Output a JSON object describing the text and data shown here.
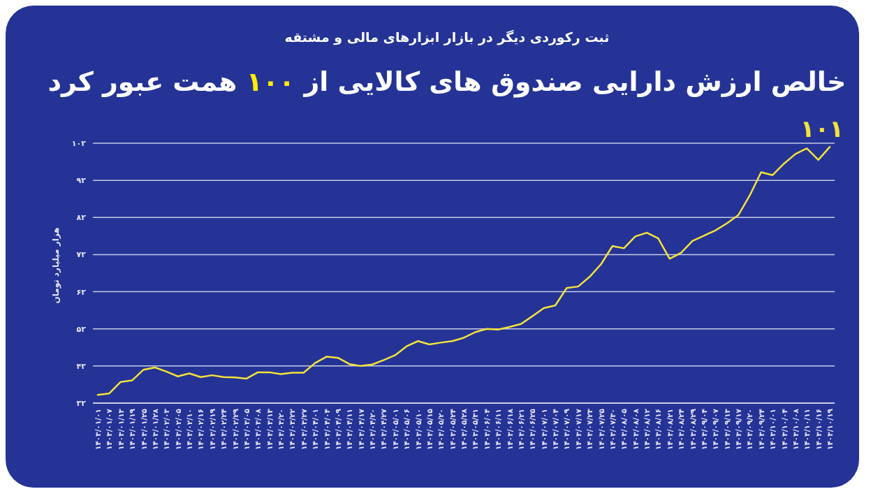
{
  "chart_data": {
    "type": "line",
    "title": "خالص ارزش دارایی صندوق های کالایی از ۱۰۰ همت عبور کرد",
    "subtitle": "ثبت رکوردی دیگر در بازار ابزارهای مالی و مشتقه",
    "ylabel": "هزار میلیارد تومان",
    "categories": [
      "۱۴۰۳/۰۱/۰۱",
      "۱۴۰۳/۰۱/۰۷",
      "۱۴۰۳/۰۱/۱۳",
      "۱۴۰۳/۰۱/۱۹",
      "۱۴۰۳/۰۱/۲۵",
      "۱۴۰۳/۰۱/۲۸",
      "۱۴۰۳/۰۲/۰۳",
      "۱۴۰۳/۰۲/۰۵",
      "۱۴۰۳/۰۲/۱۰",
      "۱۴۰۳/۰۲/۱۶",
      "۱۴۰۳/۰۲/۱۹",
      "۱۴۰۳/۰۲/۲۴",
      "۱۴۰۳/۰۲/۲۹",
      "۱۴۰۳/۰۳/۰۵",
      "۱۴۰۳/۰۳/۰۸",
      "۱۴۰۳/۰۳/۱۳",
      "۱۴۰۳/۰۳/۲۰",
      "۱۴۰۳/۰۳/۲۲",
      "۱۴۰۳/۰۳/۲۷",
      "۱۴۰۳/۰۴/۰۱",
      "۱۴۰۳/۰۴/۰۴",
      "۱۴۰۳/۰۴/۰۹",
      "۱۴۰۳/۰۴/۱۱",
      "۱۴۰۳/۰۴/۱۷",
      "۱۴۰۳/۰۴/۲۰",
      "۱۴۰۳/۰۴/۲۷",
      "۱۴۰۳/۰۵/۰۱",
      "۱۴۰۳/۰۵/۰۶",
      "۱۴۰۳/۰۵/۱۰",
      "۱۴۰۳/۰۵/۱۵",
      "۱۴۰۳/۰۵/۲۰",
      "۱۴۰۳/۰۵/۲۴",
      "۱۴۰۳/۰۵/۲۸",
      "۱۴۰۳/۰۵/۳۱",
      "۱۴۰۳/۰۶/۰۴",
      "۱۴۰۳/۰۶/۱۱",
      "۱۴۰۳/۰۶/۱۸",
      "۱۴۰۳/۰۶/۲۱",
      "۱۴۰۳/۰۶/۲۵",
      "۱۴۰۳/۰۷/۰۱",
      "۱۴۰۳/۰۷/۰۴",
      "۱۴۰۳/۰۷/۰۹",
      "۱۴۰۳/۰۷/۱۷",
      "۱۴۰۳/۰۷/۲۳",
      "۱۴۰۳/۰۷/۲۵",
      "۱۴۰۳/۰۷/۳۰",
      "۱۴۰۳/۰۸/۰۵",
      "۱۴۰۳/۰۸/۰۸",
      "۱۴۰۳/۰۸/۱۲",
      "۱۴۰۳/۰۸/۱۶",
      "۱۴۰۳/۰۸/۲۱",
      "۱۴۰۳/۰۸/۲۴",
      "۱۴۰۳/۰۸/۲۹",
      "۱۴۰۳/۰۹/۰۴",
      "۱۴۰۳/۰۹/۰۷",
      "۱۴۰۳/۰۹/۱۳",
      "۱۴۰۳/۰۹/۱۷",
      "۱۴۰۳/۰۹/۲۰",
      "۱۴۰۳/۰۹/۲۴",
      "۱۴۰۳/۱۰/۰۱",
      "۱۴۰۳/۱۰/۰۴",
      "۱۴۰۳/۱۰/۰۸",
      "۱۴۰۳/۱۰/۱۱",
      "۱۴۰۳/۱۰/۱۶",
      "۱۴۰۳/۱۰/۱۹"
    ],
    "series": [
      {
        "color": "#f3e43a",
        "values": [
          34.2,
          34.6,
          37.7,
          38.1,
          41.0,
          41.6,
          40.5,
          39.2,
          40.0,
          39.0,
          39.5,
          39.0,
          38.9,
          38.6,
          40.3,
          40.3,
          39.8,
          40.2,
          40.2,
          42.8,
          44.5,
          44.2,
          42.5,
          42.0,
          42.4,
          43.6,
          44.9,
          47.3,
          48.7,
          47.8,
          48.3,
          48.7,
          49.6,
          51.1,
          52.0,
          51.8,
          52.5,
          53.3,
          55.4,
          57.6,
          58.3,
          63.0,
          63.4,
          66.0,
          69.4,
          74.3,
          73.7,
          76.9,
          77.9,
          76.4,
          70.9,
          72.5,
          75.7,
          77.1,
          78.5,
          80.4,
          82.6,
          87.9,
          94.2,
          93.4,
          96.5,
          99.1,
          100.6,
          97.5,
          101
        ]
      }
    ],
    "ylim": [
      32,
      102
    ],
    "yticks": [
      {
        "value": 32,
        "label": "۳۲"
      },
      {
        "value": 42,
        "label": "۴۲"
      },
      {
        "value": 52,
        "label": "۵۲"
      },
      {
        "value": 62,
        "label": "۶۲"
      },
      {
        "value": 72,
        "label": "۷۲"
      },
      {
        "value": 82,
        "label": "۸۲"
      },
      {
        "value": 92,
        "label": "۹۲"
      },
      {
        "value": 102,
        "label": "۱۰۲"
      }
    ],
    "grid": "y",
    "annotations": [
      {
        "text": "۱۰۱",
        "x": "۱۴۰۳/۱۰/۱۹",
        "y": 101
      }
    ]
  }
}
